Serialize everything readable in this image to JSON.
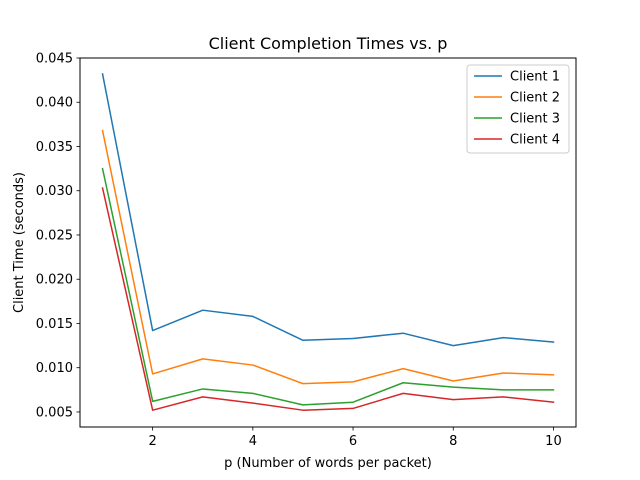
{
  "chart_data": {
    "type": "line",
    "title": "Client Completion Times vs. p",
    "xlabel": "p (Number of words per packet)",
    "ylabel": "Client Time (seconds)",
    "x": [
      1,
      2,
      3,
      4,
      5,
      6,
      7,
      8,
      9,
      10
    ],
    "xlim": [
      0.55,
      10.45
    ],
    "ylim": [
      0.0033,
      0.045
    ],
    "xticks": [
      "2",
      "4",
      "6",
      "8",
      "10"
    ],
    "yticks": [
      "0.005",
      "0.010",
      "0.015",
      "0.020",
      "0.025",
      "0.030",
      "0.035",
      "0.040",
      "0.045"
    ],
    "grid": false,
    "legend_position": "top-right",
    "series": [
      {
        "name": "Client 1",
        "color": "#1f77b4",
        "values": [
          0.0432,
          0.0142,
          0.0165,
          0.0158,
          0.0131,
          0.0133,
          0.0139,
          0.0125,
          0.0134,
          0.0129
        ]
      },
      {
        "name": "Client 2",
        "color": "#ff7f0e",
        "values": [
          0.0368,
          0.0093,
          0.011,
          0.0103,
          0.0082,
          0.0084,
          0.0099,
          0.0085,
          0.0094,
          0.0092
        ]
      },
      {
        "name": "Client 3",
        "color": "#2ca02c",
        "values": [
          0.0325,
          0.0062,
          0.0076,
          0.0071,
          0.0058,
          0.0061,
          0.0083,
          0.0078,
          0.0075,
          0.0075
        ]
      },
      {
        "name": "Client 4",
        "color": "#d62728",
        "values": [
          0.0303,
          0.0052,
          0.0067,
          0.006,
          0.0052,
          0.0054,
          0.0071,
          0.0064,
          0.0067,
          0.0061
        ]
      }
    ]
  }
}
